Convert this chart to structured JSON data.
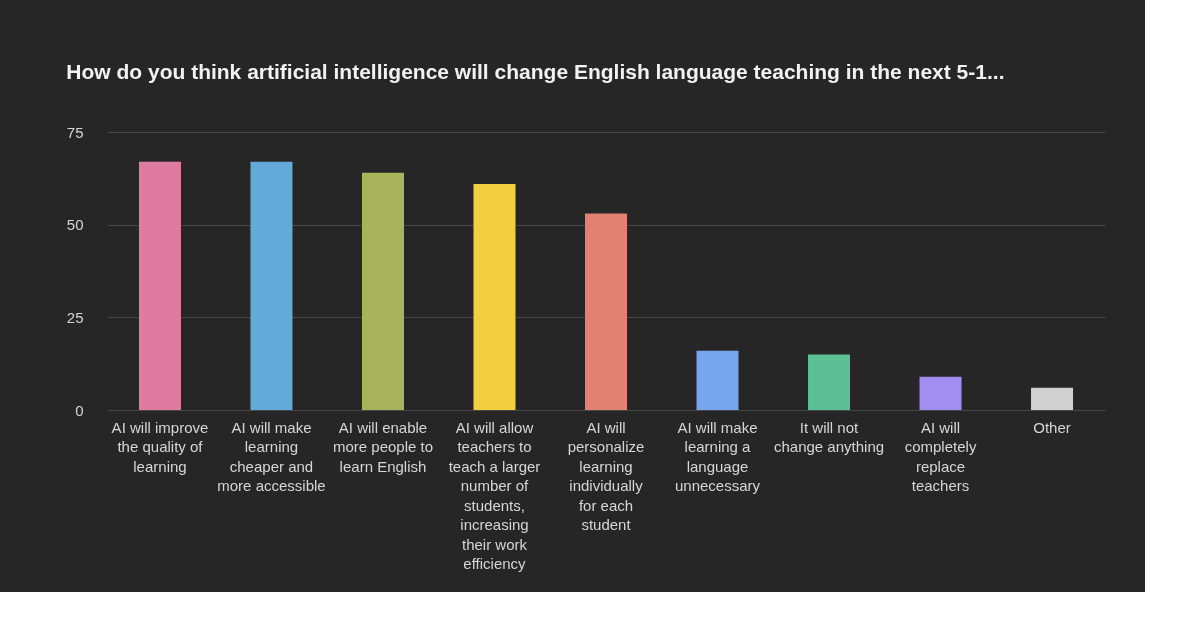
{
  "chart_data": {
    "type": "bar",
    "title": "How do you think artificial intelligence will change English language teaching in the next 5-1...",
    "categories": [
      "AI will improve the quality of learning",
      "AI will make learning cheaper and more accessible",
      "AI will enable more people to learn English",
      "AI will allow teachers to teach a larger number of students, increasing their work efficiency",
      "AI will personalize learning individually for each student",
      "AI will make learning a language unnecessary",
      "It will not change anything",
      "AI will completely replace teachers",
      "Other"
    ],
    "values": [
      67,
      67,
      64,
      61,
      53,
      16,
      15,
      9,
      6
    ],
    "colors": [
      "#e07ba0",
      "#64aad8",
      "#a9b35b",
      "#f2cf3e",
      "#e08172",
      "#78a6ee",
      "#5cbf96",
      "#a18ef0",
      "#d0d0d0"
    ],
    "ylim": [
      0,
      75
    ],
    "yticks": [
      0,
      25,
      50,
      75
    ],
    "grid": "y"
  }
}
